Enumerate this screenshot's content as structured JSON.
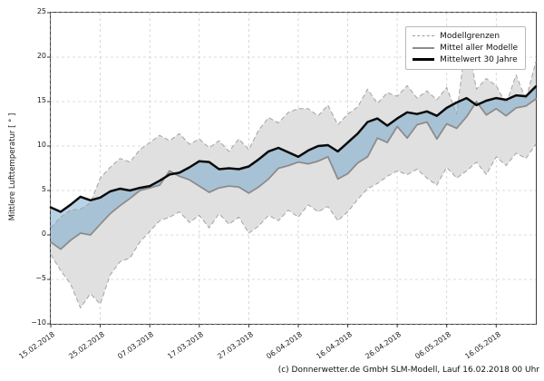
{
  "caption": "(c) Donnerwetter.de GmbH SLM-Modell, Lauf 16.02.2018 00 Uhr",
  "y_axis": {
    "label": "Mittlere Lufttemperatur [ ° ]",
    "ticks": [
      "25",
      "20",
      "15",
      "10",
      "5",
      "0",
      "−5",
      "−10"
    ]
  },
  "legend": {
    "entries": [
      {
        "label": "Modellgrenzen",
        "style": "sw-dashed"
      },
      {
        "label": "Mittel aller Modelle",
        "style": "sw-gray"
      },
      {
        "label": "Mittelwert 30 Jahre",
        "style": "sw-black"
      }
    ]
  },
  "chart_data": {
    "type": "line",
    "title": "",
    "xlabel": "",
    "ylabel": "Mittlere Lufttemperatur [ ° ]",
    "x_range": [
      0,
      98
    ],
    "y_range": [
      -10,
      25
    ],
    "grid": true,
    "legend_position": "upper right",
    "x_tick_days": [
      0,
      10,
      20,
      30,
      40,
      50,
      60,
      70,
      80,
      90
    ],
    "x_tick_labels": [
      "15.02.2018",
      "25.02.2018",
      "07.03.2018",
      "17.03.2018",
      "27.03.2018",
      "06.04.2018",
      "16.04.2018",
      "26.04.2018",
      "06.05.2018",
      "16.05.2018"
    ],
    "y_ticks": [
      25,
      20,
      15,
      10,
      5,
      0,
      -5,
      -10
    ],
    "x_days": [
      0,
      2,
      4,
      6,
      8,
      10,
      12,
      14,
      16,
      18,
      20,
      22,
      24,
      26,
      28,
      30,
      32,
      34,
      36,
      38,
      40,
      42,
      44,
      46,
      48,
      50,
      52,
      54,
      56,
      58,
      60,
      62,
      64,
      66,
      68,
      70,
      72,
      74,
      76,
      78,
      80,
      82,
      84,
      86,
      88,
      90,
      92,
      94,
      96,
      98
    ],
    "series": [
      {
        "name": "Mittelwert 30 Jahre",
        "role": "climate-mean",
        "color": "#000000",
        "values": [
          3.1,
          2.6,
          3.4,
          4.3,
          3.9,
          4.2,
          4.9,
          5.2,
          5.0,
          5.3,
          5.5,
          6.1,
          6.8,
          7.0,
          7.6,
          8.3,
          8.2,
          7.4,
          7.5,
          7.4,
          7.7,
          8.5,
          9.4,
          9.8,
          9.3,
          8.8,
          9.5,
          10.0,
          10.1,
          9.4,
          10.4,
          11.4,
          12.7,
          13.1,
          12.3,
          13.1,
          13.8,
          13.6,
          13.9,
          13.4,
          14.3,
          14.9,
          15.4,
          14.6,
          15.1,
          15.4,
          15.2,
          15.7,
          15.6,
          16.7
        ]
      },
      {
        "name": "Mittel aller Modelle",
        "role": "model-mean",
        "color": "#8c8c8c",
        "values": [
          -0.8,
          -1.6,
          -0.6,
          0.2,
          0.0,
          1.2,
          2.4,
          3.3,
          4.1,
          5.0,
          5.3,
          5.6,
          7.2,
          6.6,
          6.2,
          5.5,
          4.8,
          5.3,
          5.5,
          5.4,
          4.7,
          5.4,
          6.3,
          7.5,
          7.8,
          8.2,
          8.0,
          8.3,
          8.8,
          6.3,
          6.9,
          8.1,
          8.8,
          10.9,
          10.4,
          12.2,
          10.9,
          12.4,
          12.7,
          10.8,
          12.5,
          12.0,
          13.3,
          15.0,
          13.5,
          14.2,
          13.4,
          14.3,
          14.5,
          15.3
        ]
      },
      {
        "name": "Modellgrenzen (max)",
        "role": "upper-bound",
        "color": "#a3a3a3",
        "values": [
          0.8,
          2.0,
          2.8,
          2.9,
          3.6,
          6.4,
          7.6,
          8.6,
          8.2,
          9.6,
          10.4,
          11.2,
          10.6,
          11.4,
          10.2,
          10.8,
          9.8,
          10.6,
          9.4,
          10.8,
          9.6,
          11.8,
          13.2,
          12.6,
          13.8,
          14.2,
          14.2,
          13.4,
          14.6,
          12.4,
          13.6,
          14.4,
          16.4,
          14.8,
          16.0,
          15.6,
          16.8,
          15.4,
          16.2,
          15.2,
          16.6,
          13.6,
          22.3,
          16.4,
          17.6,
          16.8,
          14.7,
          18.0,
          15.2,
          19.5
        ]
      },
      {
        "name": "Modellgrenzen (min)",
        "role": "lower-bound",
        "color": "#a3a3a3",
        "values": [
          -2.2,
          -4.0,
          -5.5,
          -8.2,
          -6.6,
          -7.8,
          -4.5,
          -3.0,
          -2.6,
          -0.8,
          0.4,
          1.6,
          2.0,
          2.6,
          1.4,
          2.2,
          0.8,
          2.4,
          1.2,
          2.0,
          0.2,
          1.0,
          2.2,
          1.6,
          2.8,
          2.0,
          3.4,
          2.6,
          3.2,
          1.6,
          2.6,
          4.0,
          5.2,
          5.8,
          6.6,
          7.2,
          6.8,
          7.4,
          6.4,
          5.6,
          7.6,
          6.4,
          7.2,
          8.2,
          6.8,
          8.8,
          7.8,
          9.2,
          8.6,
          10.2
        ]
      }
    ],
    "fills": {
      "band": "#e0e0e0",
      "below_normal": "rgba(100,158,200,0.45)",
      "above_normal": "rgba(217,108,85,0.45)"
    }
  }
}
